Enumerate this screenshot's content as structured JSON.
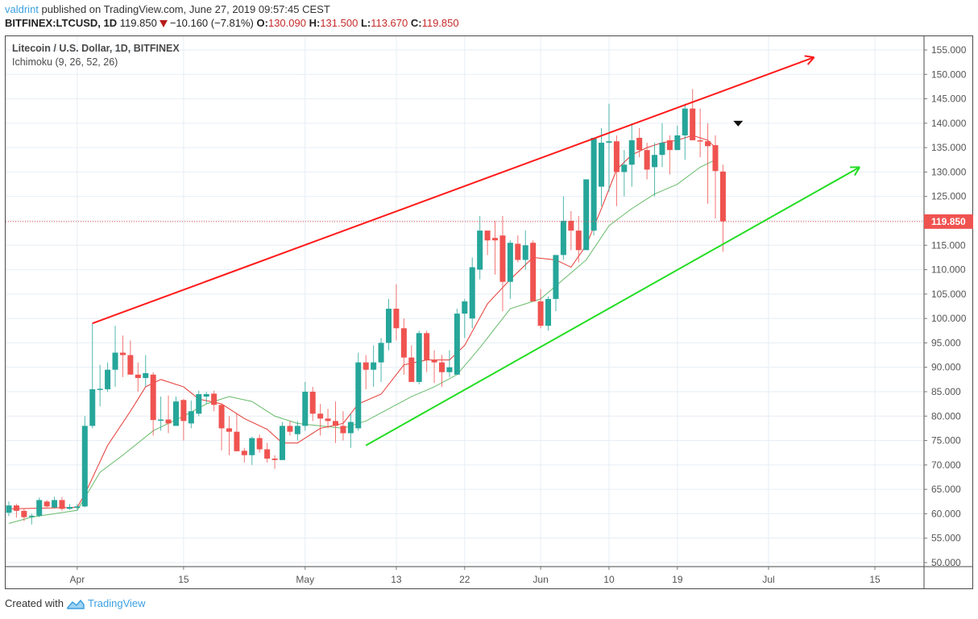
{
  "header": {
    "publisher": "valdrint",
    "published_text": " published on TradingView.com, June 27, 2019 09:57:45 CEST",
    "symbol": "BITFINEX:LTCUSD, 1D",
    "last": "119.850",
    "change": "−10.160 (−7.81%)",
    "o_label": "O:",
    "o": "130.090",
    "h_label": "H:",
    "h": "131.500",
    "l_label": "L:",
    "l": "113.670",
    "c_label": "C:",
    "c": "119.850"
  },
  "legend": {
    "title": "Litecoin / U.S. Dollar, 1D, BITFINEX",
    "indicator": "Ichimoku (9, 26, 52, 26)"
  },
  "footer": {
    "created_with": "Created with",
    "brand": "TradingView"
  },
  "colors": {
    "up": "#26a69a",
    "down": "#ef5350",
    "conversion_line": "#e53935",
    "base_line": "#66bb6a",
    "resistance": "#ff1a1a",
    "support": "#22dd22",
    "price_label": "#ef5350",
    "grid": "#e6eef5"
  },
  "chart_data": {
    "type": "candlestick",
    "title": "Litecoin / U.S. Dollar, 1D, BITFINEX",
    "ylabel": "USD",
    "ylim": [
      50,
      155
    ],
    "y_ticks": [
      "155.000",
      "150.000",
      "145.000",
      "140.000",
      "135.000",
      "130.000",
      "125.000",
      "120.000",
      "115.000",
      "110.000",
      "105.000",
      "100.000",
      "95.000",
      "90.000",
      "85.000",
      "80.000",
      "75.000",
      "70.000",
      "65.000",
      "60.000",
      "55.000",
      "50.000"
    ],
    "x_ticks": [
      {
        "label": "Apr",
        "day": 9
      },
      {
        "label": "15",
        "day": 23
      },
      {
        "label": "May",
        "day": 39
      },
      {
        "label": "13",
        "day": 51
      },
      {
        "label": "22",
        "day": 60
      },
      {
        "label": "Jun",
        "day": 70
      },
      {
        "label": "10",
        "day": 79
      },
      {
        "label": "19",
        "day": 88
      },
      {
        "label": "Jul",
        "day": 100
      },
      {
        "label": "15",
        "day": 114
      }
    ],
    "last_price": "119.850",
    "candles": [
      [
        0,
        60.2,
        62.5,
        59.5,
        61.7
      ],
      [
        1,
        61.7,
        62.0,
        59.2,
        60.6
      ],
      [
        2,
        60.6,
        61.0,
        58.5,
        59.3
      ],
      [
        3,
        59.4,
        60.0,
        57.8,
        59.6
      ],
      [
        4,
        59.6,
        63.3,
        59.3,
        62.8
      ],
      [
        5,
        62.5,
        62.8,
        61.3,
        61.5
      ],
      [
        6,
        61.3,
        63.5,
        61.1,
        62.8
      ],
      [
        7,
        62.8,
        63.4,
        60.6,
        61.0
      ],
      [
        8,
        61.0,
        62.0,
        60.8,
        61.4
      ],
      [
        9,
        61.2,
        62.0,
        60.8,
        61.5
      ],
      [
        10,
        61.5,
        80.0,
        61.3,
        78.0
      ],
      [
        11,
        78.0,
        99.0,
        77.5,
        85.5
      ],
      [
        12,
        85.5,
        90.5,
        82.0,
        85.6
      ],
      [
        13,
        85.5,
        91.0,
        85.0,
        89.5
      ],
      [
        14,
        89.5,
        98.5,
        86.0,
        93.0
      ],
      [
        15,
        93.0,
        96.5,
        88.0,
        92.5
      ],
      [
        16,
        92.5,
        95.5,
        89.0,
        88.5
      ],
      [
        17,
        88.5,
        91.0,
        85.0,
        87.8
      ],
      [
        18,
        87.8,
        92.5,
        86.0,
        88.8
      ],
      [
        19,
        88.5,
        89.0,
        76.0,
        79.2
      ],
      [
        20,
        79.2,
        84.0,
        77.0,
        79.3
      ],
      [
        21,
        79.3,
        84.2,
        76.5,
        78.5
      ],
      [
        22,
        78.0,
        84.0,
        78.5,
        83.0
      ],
      [
        23,
        83.3,
        83.5,
        75.0,
        79.0
      ],
      [
        24,
        78.5,
        83.2,
        77.5,
        81.0
      ],
      [
        25,
        80.5,
        85.2,
        80.0,
        84.5
      ],
      [
        26,
        84.0,
        85.0,
        82.5,
        84.5
      ],
      [
        27,
        84.6,
        85.2,
        81.0,
        82.3
      ],
      [
        28,
        82.3,
        82.5,
        73.0,
        77.5
      ],
      [
        29,
        77.5,
        80.0,
        72.0,
        76.8
      ],
      [
        30,
        76.8,
        80.5,
        74.2,
        72.8
      ],
      [
        31,
        72.9,
        73.5,
        70.5,
        72.0
      ],
      [
        32,
        72.0,
        75.8,
        70.0,
        75.5
      ],
      [
        33,
        75.5,
        76.2,
        72.5,
        73.2
      ],
      [
        34,
        73.2,
        74.5,
        70.5,
        71.3
      ],
      [
        35,
        71.3,
        72.0,
        69.2,
        71.0
      ],
      [
        36,
        71.0,
        78.8,
        71.0,
        78.0
      ],
      [
        37,
        78.0,
        79.0,
        76.0,
        76.8
      ],
      [
        38,
        76.3,
        79.0,
        75.0,
        78.0
      ],
      [
        39,
        78.0,
        87.0,
        77.0,
        85.0
      ],
      [
        40,
        85.0,
        86.0,
        79.0,
        80.5
      ],
      [
        41,
        80.5,
        82.5,
        76.0,
        79.5
      ],
      [
        42,
        79.5,
        81.5,
        77.5,
        79.0
      ],
      [
        43,
        79.0,
        83.0,
        74.5,
        78.0
      ],
      [
        44,
        78.0,
        81.0,
        75.0,
        76.5
      ],
      [
        45,
        76.5,
        80.5,
        73.5,
        78.8
      ],
      [
        46,
        77.5,
        93.0,
        77.0,
        91.0
      ],
      [
        47,
        91.0,
        92.5,
        85.5,
        89.5
      ],
      [
        48,
        89.5,
        94.5,
        86.0,
        91.0
      ],
      [
        49,
        91.0,
        96.0,
        87.0,
        95.0
      ],
      [
        50,
        95.0,
        104.0,
        93.5,
        102.0
      ],
      [
        51,
        102.0,
        107.0,
        95.5,
        98.0
      ],
      [
        52,
        98.0,
        100.0,
        88.5,
        92.0
      ],
      [
        53,
        92.0,
        94.5,
        88.0,
        87.0
      ],
      [
        54,
        87.0,
        97.5,
        86.5,
        97.0
      ],
      [
        55,
        97.0,
        97.5,
        89.0,
        91.5
      ],
      [
        56,
        91.5,
        93.5,
        86.8,
        91.0
      ],
      [
        57,
        91.0,
        92.5,
        86.0,
        89.0
      ],
      [
        58,
        89.0,
        93.5,
        88.0,
        90.0
      ],
      [
        59,
        88.5,
        102.0,
        88.5,
        101.0
      ],
      [
        60,
        101.0,
        104.0,
        96.0,
        103.5
      ],
      [
        61,
        100.0,
        112.5,
        98.0,
        110.5
      ],
      [
        62,
        110.0,
        121.0,
        108.0,
        118.0
      ],
      [
        63,
        118.0,
        116.5,
        113.0,
        116.0
      ],
      [
        64,
        116.5,
        120.0,
        109.0,
        116.0
      ],
      [
        65,
        117.0,
        121.0,
        101.5,
        107.5
      ],
      [
        66,
        107.5,
        116.0,
        104.0,
        115.5
      ],
      [
        67,
        115.3,
        117.0,
        111.5,
        112.0
      ],
      [
        68,
        112.0,
        118.0,
        110.0,
        115.0
      ],
      [
        69,
        115.5,
        116.0,
        106.0,
        103.5
      ],
      [
        70,
        103.5,
        106.0,
        98.0,
        98.5
      ],
      [
        71,
        98.5,
        104.5,
        97.5,
        104.0
      ],
      [
        72,
        104.0,
        112.0,
        101.5,
        113.0
      ],
      [
        73,
        113.0,
        125.0,
        112.0,
        120.0
      ],
      [
        74,
        120.0,
        122.0,
        114.0,
        118.0
      ],
      [
        75,
        118.0,
        121.0,
        111.5,
        114.0
      ],
      [
        76,
        114.0,
        122.5,
        117.0,
        128.5
      ],
      [
        77,
        118.0,
        135.0,
        117.0,
        137.0
      ],
      [
        78,
        127.0,
        139.0,
        123.0,
        136.0
      ],
      [
        79,
        136.0,
        144.0,
        126.0,
        136.3
      ],
      [
        80,
        136.3,
        137.5,
        123.0,
        130.0
      ],
      [
        81,
        130.0,
        134.5,
        125.0,
        131.5
      ],
      [
        82,
        131.5,
        140.0,
        127.0,
        136.5
      ],
      [
        83,
        137.0,
        139.0,
        133.0,
        134.5
      ],
      [
        84,
        134.5,
        136.0,
        128.5,
        130.5
      ],
      [
        85,
        131.0,
        136.0,
        125.0,
        133.5
      ],
      [
        86,
        133.5,
        140.0,
        131.0,
        136.0
      ],
      [
        87,
        136.5,
        137.5,
        129.5,
        134.5
      ],
      [
        88,
        134.5,
        139.5,
        134.5,
        137.5
      ],
      [
        89,
        137.5,
        144.0,
        132.5,
        143.0
      ],
      [
        90,
        143.0,
        147.0,
        137.0,
        136.5
      ],
      [
        91,
        136.5,
        143.0,
        133.0,
        136.3
      ],
      [
        92,
        136.3,
        140.0,
        123.5,
        135.3
      ],
      [
        93,
        135.5,
        137.5,
        120.5,
        130.2
      ],
      [
        94,
        130.1,
        131.5,
        113.7,
        119.9
      ]
    ],
    "conversion_line": [
      [
        0,
        61.0
      ],
      [
        9,
        61.3
      ],
      [
        10,
        64.0
      ],
      [
        13,
        74.0
      ],
      [
        16,
        81.0
      ],
      [
        18,
        86.0
      ],
      [
        20,
        87.5
      ],
      [
        23,
        86.0
      ],
      [
        25,
        83.5
      ],
      [
        28,
        82.5
      ],
      [
        31,
        79.5
      ],
      [
        34,
        77.3
      ],
      [
        36,
        74.5
      ],
      [
        38,
        74.5
      ],
      [
        41,
        77.5
      ],
      [
        44,
        78.5
      ],
      [
        46,
        82.5
      ],
      [
        49,
        84.5
      ],
      [
        52,
        90.5
      ],
      [
        55,
        91.5
      ],
      [
        58,
        91.5
      ],
      [
        60,
        94.5
      ],
      [
        63,
        103.0
      ],
      [
        66,
        108.0
      ],
      [
        69,
        112.5
      ],
      [
        72,
        112.0
      ],
      [
        74,
        110.5
      ],
      [
        76,
        115.0
      ],
      [
        78,
        122.5
      ],
      [
        80,
        130.5
      ],
      [
        82,
        133.5
      ],
      [
        84,
        135.0
      ],
      [
        86,
        136.0
      ],
      [
        88,
        136.5
      ],
      [
        90,
        137.5
      ],
      [
        92,
        136.5
      ],
      [
        93,
        135.0
      ]
    ],
    "base_line": [
      [
        0,
        58.0
      ],
      [
        3,
        59.3
      ],
      [
        6,
        60.0
      ],
      [
        9,
        60.7
      ],
      [
        12,
        68.5
      ],
      [
        15,
        72.0
      ],
      [
        19,
        77.0
      ],
      [
        23,
        80.0
      ],
      [
        26,
        82.5
      ],
      [
        29,
        84.0
      ],
      [
        32,
        83.0
      ],
      [
        35,
        80.0
      ],
      [
        38,
        78.5
      ],
      [
        41,
        78.0
      ],
      [
        44,
        77.5
      ],
      [
        47,
        79.0
      ],
      [
        50,
        81.5
      ],
      [
        53,
        84.0
      ],
      [
        56,
        86.0
      ],
      [
        59,
        88.5
      ],
      [
        62,
        94.0
      ],
      [
        66,
        102.0
      ],
      [
        70,
        104.0
      ],
      [
        73,
        108.0
      ],
      [
        76,
        112.0
      ],
      [
        79,
        119.0
      ],
      [
        82,
        122.5
      ],
      [
        85,
        125.5
      ],
      [
        88,
        127.5
      ],
      [
        91,
        131.0
      ],
      [
        93,
        132.5
      ]
    ],
    "annotations": [
      {
        "type": "trend-line",
        "name": "resistance",
        "from": [
          11,
          99.0
        ],
        "to": [
          106,
          153.5
        ],
        "arrow": true
      },
      {
        "type": "trend-line",
        "name": "support",
        "from": [
          47,
          74.0
        ],
        "to": [
          112,
          131.0
        ],
        "arrow": true
      },
      {
        "type": "marker",
        "name": "down-arrow-marker",
        "at": [
          96,
          140.0
        ]
      }
    ]
  }
}
